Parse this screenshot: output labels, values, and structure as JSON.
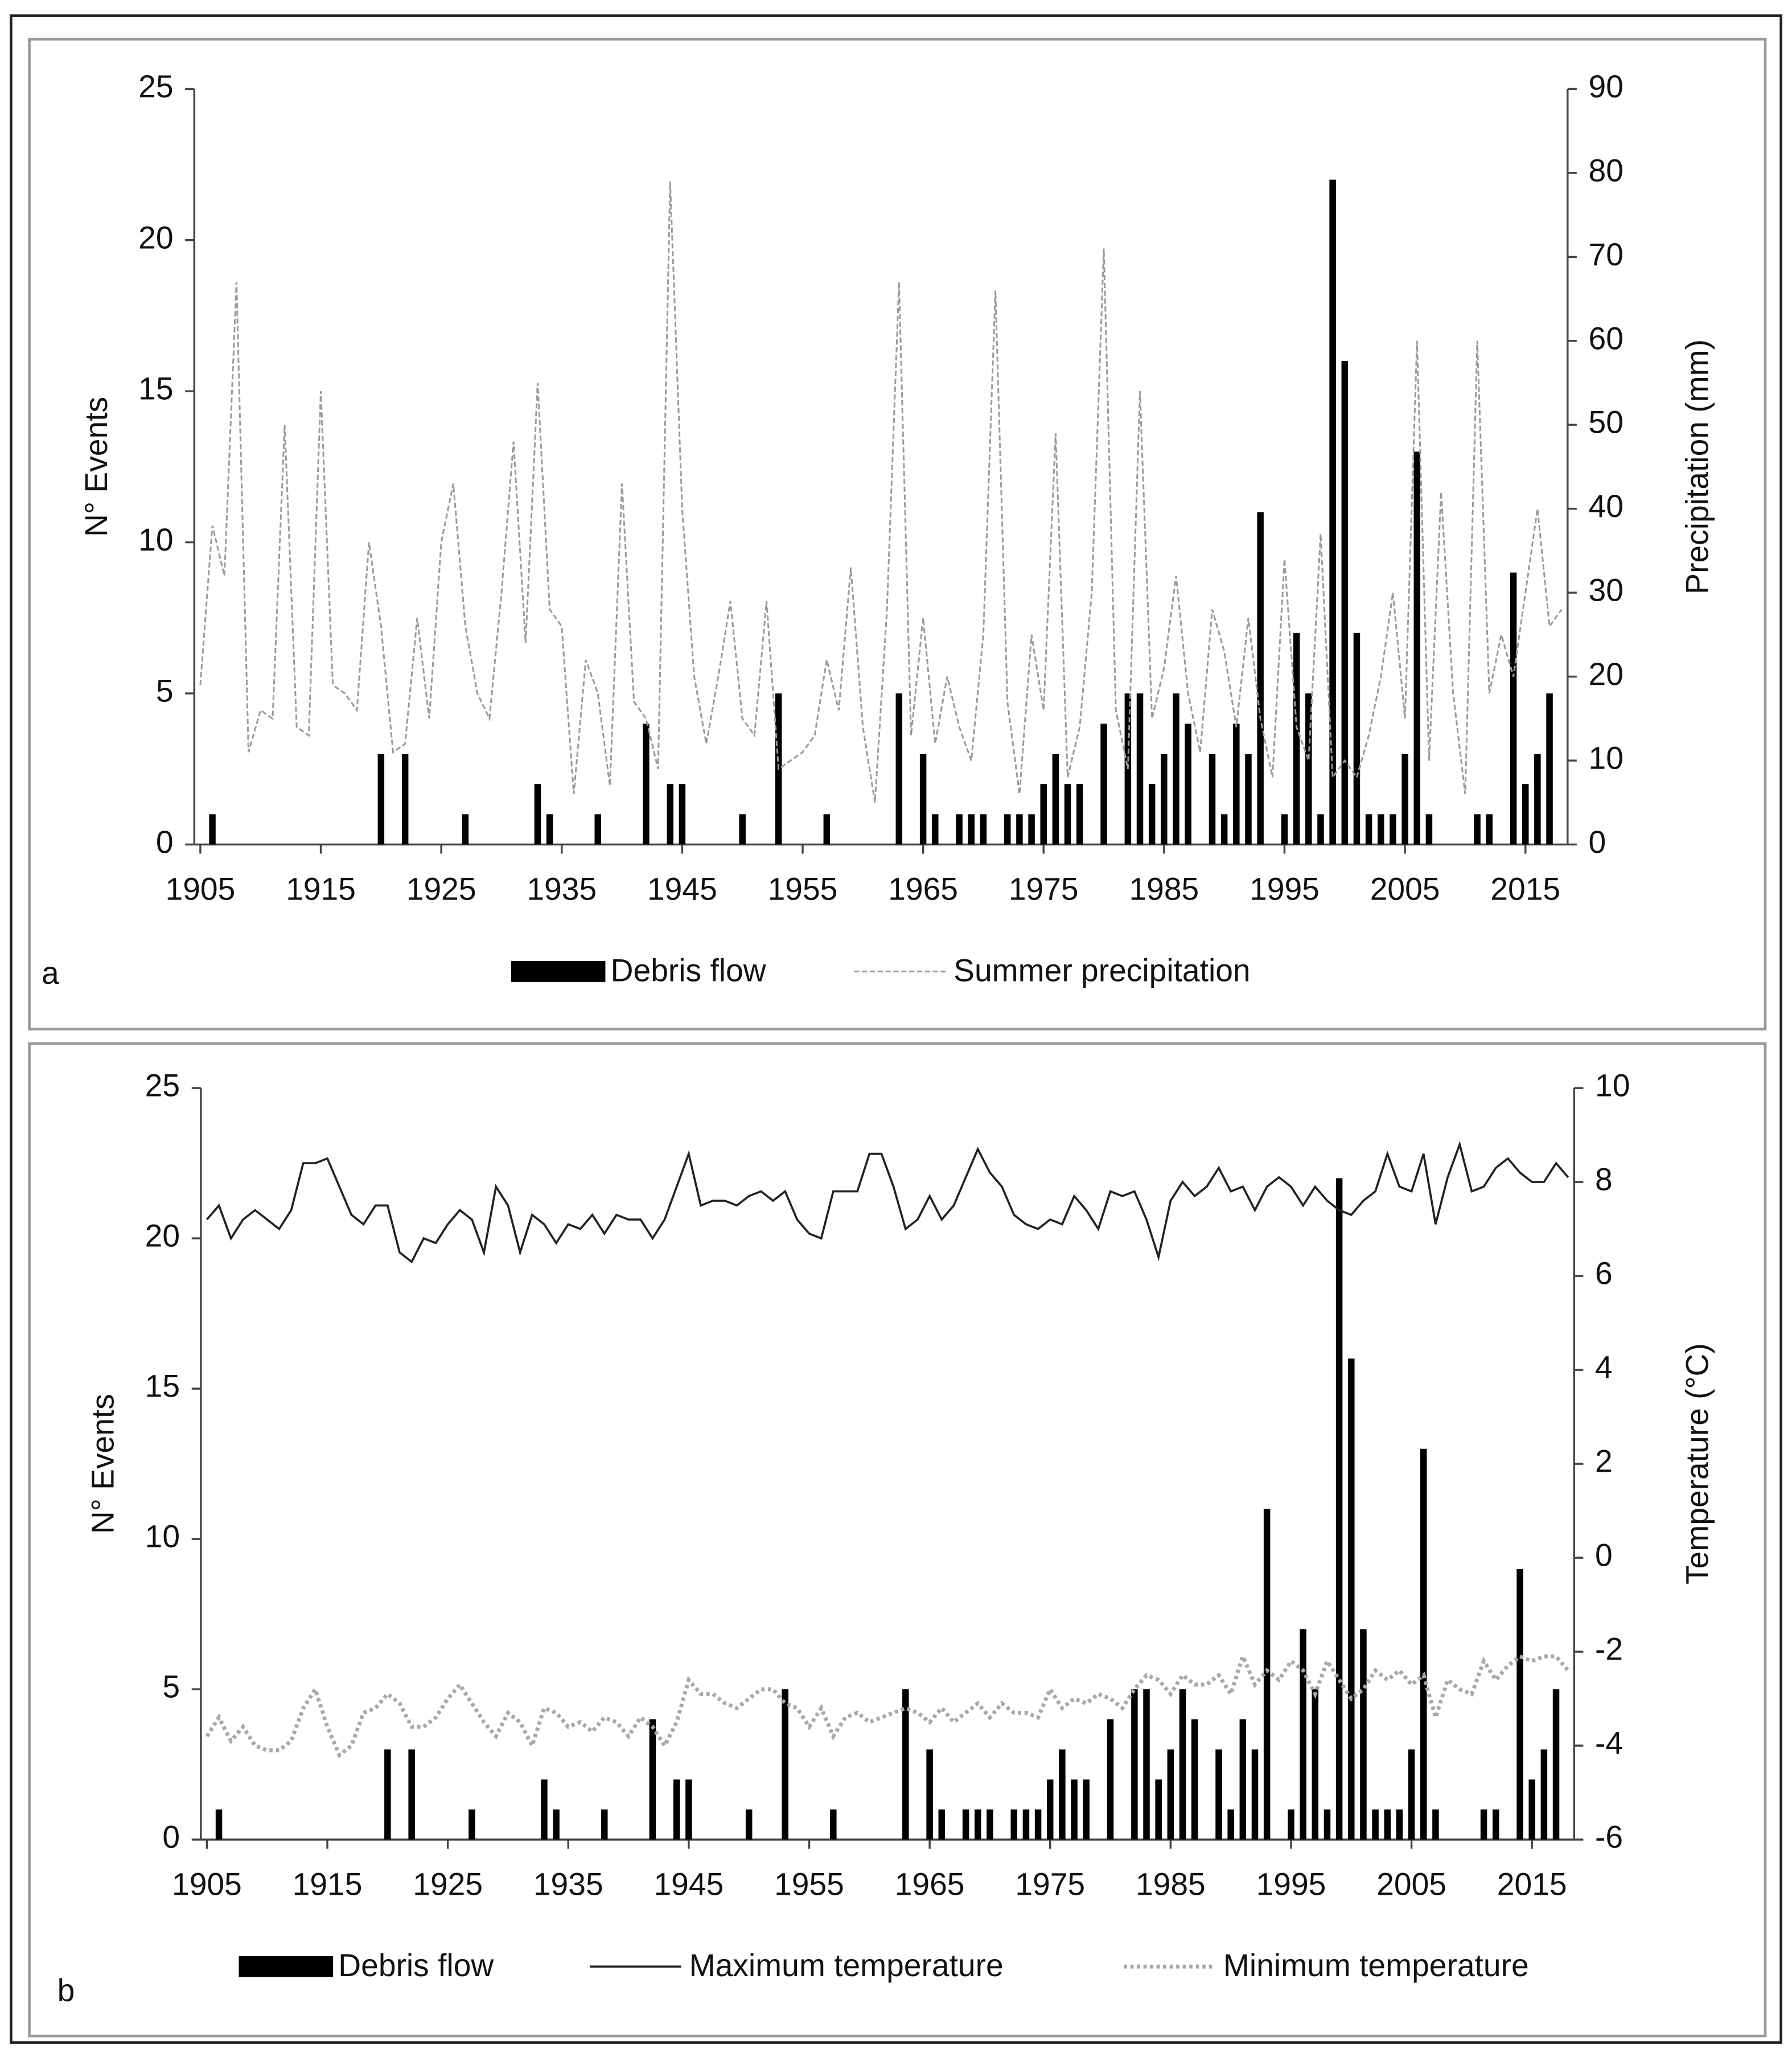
{
  "chart_data": [
    {
      "type": "combo",
      "panel_label": "a",
      "x": [
        1905,
        1906,
        1907,
        1908,
        1909,
        1910,
        1911,
        1912,
        1913,
        1914,
        1915,
        1916,
        1917,
        1918,
        1919,
        1920,
        1921,
        1922,
        1923,
        1924,
        1925,
        1926,
        1927,
        1928,
        1929,
        1930,
        1931,
        1932,
        1933,
        1934,
        1935,
        1936,
        1937,
        1938,
        1939,
        1940,
        1941,
        1942,
        1943,
        1944,
        1945,
        1946,
        1947,
        1948,
        1949,
        1950,
        1951,
        1952,
        1953,
        1954,
        1955,
        1956,
        1957,
        1958,
        1959,
        1960,
        1961,
        1962,
        1963,
        1964,
        1965,
        1966,
        1967,
        1968,
        1969,
        1970,
        1971,
        1972,
        1973,
        1974,
        1975,
        1976,
        1977,
        1978,
        1979,
        1980,
        1981,
        1982,
        1983,
        1984,
        1985,
        1986,
        1987,
        1988,
        1989,
        1990,
        1991,
        1992,
        1993,
        1994,
        1995,
        1996,
        1997,
        1998,
        1999,
        2000,
        2001,
        2002,
        2003,
        2004,
        2005,
        2006,
        2007,
        2008,
        2009,
        2010,
        2011,
        2012,
        2013,
        2014,
        2015,
        2016,
        2017,
        2018
      ],
      "xlim": [
        1904.5,
        2018.5
      ],
      "xticks": [
        1905,
        1915,
        1925,
        1935,
        1945,
        1955,
        1965,
        1975,
        1985,
        1995,
        2005,
        2015
      ],
      "ylabel": "N° Events",
      "ylim": [
        0,
        25
      ],
      "yticks": [
        0,
        5,
        10,
        15,
        20,
        25
      ],
      "y2label": "Precipitation (mm)",
      "y2lim": [
        0,
        90
      ],
      "y2ticks": [
        0,
        10,
        20,
        30,
        40,
        50,
        60,
        70,
        80,
        90
      ],
      "series": [
        {
          "name": "Debris flow",
          "kind": "bar",
          "color": "#000000",
          "values": [
            0,
            1,
            0,
            0,
            0,
            0,
            0,
            0,
            0,
            0,
            0,
            0,
            0,
            0,
            0,
            3,
            0,
            3,
            0,
            0,
            0,
            0,
            1,
            0,
            0,
            0,
            0,
            0,
            2,
            1,
            0,
            0,
            0,
            1,
            0,
            0,
            0,
            4,
            0,
            2,
            2,
            0,
            0,
            0,
            0,
            1,
            0,
            0,
            5,
            0,
            0,
            0,
            1,
            0,
            0,
            0,
            0,
            0,
            5,
            0,
            3,
            1,
            0,
            1,
            1,
            1,
            0,
            1,
            1,
            1,
            2,
            3,
            2,
            2,
            0,
            4,
            0,
            5,
            5,
            2,
            3,
            5,
            4,
            0,
            3,
            1,
            4,
            3,
            11,
            0,
            1,
            7,
            5,
            1,
            22,
            16,
            7,
            1,
            1,
            1,
            3,
            13,
            1,
            0,
            0,
            0,
            1,
            1,
            0,
            9,
            2,
            3,
            5,
            0
          ]
        },
        {
          "name": "Summer precipitation",
          "kind": "line",
          "dash": "dashed",
          "color": "#9a9a9a",
          "axis": "y2",
          "values": [
            19,
            38,
            32,
            67,
            11,
            16,
            15,
            50,
            14,
            13,
            54,
            19,
            18,
            16,
            36,
            26,
            11,
            12,
            27,
            15,
            36,
            43,
            26,
            18,
            15,
            30,
            48,
            24,
            55,
            28,
            26,
            6,
            22,
            18,
            7,
            43,
            17,
            15,
            9,
            79,
            40,
            20,
            12,
            20,
            29,
            15,
            13,
            29,
            9,
            10,
            11,
            13,
            22,
            16,
            33,
            14,
            5,
            28,
            67,
            13,
            27,
            12,
            20,
            14,
            10,
            25,
            66,
            17,
            6,
            25,
            16,
            49,
            8,
            14,
            30,
            71,
            16,
            9,
            54,
            15,
            21,
            32,
            18,
            11,
            28,
            23,
            14,
            27,
            15,
            8,
            34,
            14,
            10,
            37,
            8,
            10,
            8,
            13,
            20,
            30,
            15,
            60,
            10,
            42,
            18,
            6,
            60,
            18,
            25,
            20,
            30,
            40,
            26,
            28
          ]
        }
      ]
    },
    {
      "type": "combo",
      "panel_label": "b",
      "x": [
        1905,
        1906,
        1907,
        1908,
        1909,
        1910,
        1911,
        1912,
        1913,
        1914,
        1915,
        1916,
        1917,
        1918,
        1919,
        1920,
        1921,
        1922,
        1923,
        1924,
        1925,
        1926,
        1927,
        1928,
        1929,
        1930,
        1931,
        1932,
        1933,
        1934,
        1935,
        1936,
        1937,
        1938,
        1939,
        1940,
        1941,
        1942,
        1943,
        1944,
        1945,
        1946,
        1947,
        1948,
        1949,
        1950,
        1951,
        1952,
        1953,
        1954,
        1955,
        1956,
        1957,
        1958,
        1959,
        1960,
        1961,
        1962,
        1963,
        1964,
        1965,
        1966,
        1967,
        1968,
        1969,
        1970,
        1971,
        1972,
        1973,
        1974,
        1975,
        1976,
        1977,
        1978,
        1979,
        1980,
        1981,
        1982,
        1983,
        1984,
        1985,
        1986,
        1987,
        1988,
        1989,
        1990,
        1991,
        1992,
        1993,
        1994,
        1995,
        1996,
        1997,
        1998,
        1999,
        2000,
        2001,
        2002,
        2003,
        2004,
        2005,
        2006,
        2007,
        2008,
        2009,
        2010,
        2011,
        2012,
        2013,
        2014,
        2015,
        2016,
        2017,
        2018
      ],
      "xlim": [
        1904.5,
        2018.5
      ],
      "xticks": [
        1905,
        1915,
        1925,
        1935,
        1945,
        1955,
        1965,
        1975,
        1985,
        1995,
        2005,
        2015
      ],
      "ylabel": "N° Events",
      "ylim": [
        0,
        25
      ],
      "yticks": [
        0,
        5,
        10,
        15,
        20,
        25
      ],
      "y2label": "Temperature  (°C)",
      "y2lim": [
        -6,
        10
      ],
      "y2ticks": [
        -6,
        -4,
        -2,
        0,
        2,
        4,
        6,
        8,
        10
      ],
      "series": [
        {
          "name": "Debris flow",
          "kind": "bar",
          "color": "#000000",
          "values": [
            0,
            1,
            0,
            0,
            0,
            0,
            0,
            0,
            0,
            0,
            0,
            0,
            0,
            0,
            0,
            3,
            0,
            3,
            0,
            0,
            0,
            0,
            1,
            0,
            0,
            0,
            0,
            0,
            2,
            1,
            0,
            0,
            0,
            1,
            0,
            0,
            0,
            4,
            0,
            2,
            2,
            0,
            0,
            0,
            0,
            1,
            0,
            0,
            5,
            0,
            0,
            0,
            1,
            0,
            0,
            0,
            0,
            0,
            5,
            0,
            3,
            1,
            0,
            1,
            1,
            1,
            0,
            1,
            1,
            1,
            2,
            3,
            2,
            2,
            0,
            4,
            0,
            5,
            5,
            2,
            3,
            5,
            4,
            0,
            3,
            1,
            4,
            3,
            11,
            0,
            1,
            7,
            5,
            1,
            22,
            16,
            7,
            1,
            1,
            1,
            3,
            13,
            1,
            0,
            0,
            0,
            1,
            1,
            0,
            9,
            2,
            3,
            5,
            0
          ]
        },
        {
          "name": "Maximum temperature",
          "kind": "line",
          "dash": "solid",
          "color": "#222222",
          "axis": "y2",
          "values": [
            7.2,
            7.5,
            6.8,
            7.2,
            7.4,
            7.2,
            7.0,
            7.4,
            8.4,
            8.4,
            8.5,
            7.9,
            7.3,
            7.1,
            7.5,
            7.5,
            6.5,
            6.3,
            6.8,
            6.7,
            7.1,
            7.4,
            7.2,
            6.5,
            7.9,
            7.5,
            6.5,
            7.3,
            7.1,
            6.7,
            7.1,
            7.0,
            7.3,
            6.9,
            7.3,
            7.2,
            7.2,
            6.8,
            7.2,
            7.9,
            8.6,
            7.5,
            7.6,
            7.6,
            7.5,
            7.7,
            7.8,
            7.6,
            7.8,
            7.2,
            6.9,
            6.8,
            7.8,
            7.8,
            7.8,
            8.6,
            8.6,
            7.9,
            7.0,
            7.2,
            7.7,
            7.2,
            7.5,
            8.1,
            8.7,
            8.2,
            7.9,
            7.3,
            7.1,
            7.0,
            7.2,
            7.1,
            7.7,
            7.4,
            7.0,
            7.8,
            7.7,
            7.8,
            7.2,
            6.4,
            7.6,
            8.0,
            7.7,
            7.9,
            8.3,
            7.8,
            7.9,
            7.4,
            7.9,
            8.1,
            7.9,
            7.5,
            7.9,
            7.6,
            7.4,
            7.3,
            7.6,
            7.8,
            8.6,
            7.9,
            7.8,
            8.6,
            7.1,
            8.1,
            8.8,
            7.8,
            7.9,
            8.3,
            8.5,
            8.2,
            8.0,
            8.0,
            8.4,
            8.1
          ]
        },
        {
          "name": "Minimum temperature",
          "kind": "line",
          "dash": "dotted",
          "color": "#a8a8a8",
          "axis": "y2",
          "values": [
            -3.8,
            -3.4,
            -3.9,
            -3.6,
            -4.0,
            -4.1,
            -4.1,
            -3.9,
            -3.2,
            -2.8,
            -3.6,
            -4.2,
            -4.0,
            -3.3,
            -3.2,
            -2.9,
            -3.1,
            -3.6,
            -3.6,
            -3.4,
            -3.0,
            -2.7,
            -3.1,
            -3.5,
            -3.8,
            -3.3,
            -3.5,
            -4.0,
            -3.2,
            -3.3,
            -3.6,
            -3.5,
            -3.7,
            -3.4,
            -3.5,
            -3.8,
            -3.4,
            -3.6,
            -4.0,
            -3.5,
            -2.6,
            -2.9,
            -2.9,
            -3.1,
            -3.2,
            -3.0,
            -2.8,
            -2.8,
            -3.1,
            -3.2,
            -3.6,
            -3.2,
            -3.8,
            -3.4,
            -3.3,
            -3.5,
            -3.4,
            -3.3,
            -3.2,
            -3.3,
            -3.5,
            -3.2,
            -3.5,
            -3.3,
            -3.1,
            -3.4,
            -3.1,
            -3.3,
            -3.3,
            -3.4,
            -2.8,
            -3.2,
            -3.0,
            -3.1,
            -2.9,
            -3.0,
            -3.2,
            -2.8,
            -2.5,
            -2.6,
            -2.9,
            -2.5,
            -2.7,
            -2.7,
            -2.5,
            -2.9,
            -2.1,
            -2.7,
            -2.4,
            -2.6,
            -2.2,
            -2.4,
            -2.9,
            -2.2,
            -2.6,
            -3.0,
            -2.8,
            -2.4,
            -2.6,
            -2.4,
            -2.7,
            -2.5,
            -3.4,
            -2.6,
            -2.8,
            -2.9,
            -2.2,
            -2.6,
            -2.3,
            -2.1,
            -2.2,
            -2.1,
            -2.1,
            -2.4
          ]
        }
      ]
    }
  ]
}
